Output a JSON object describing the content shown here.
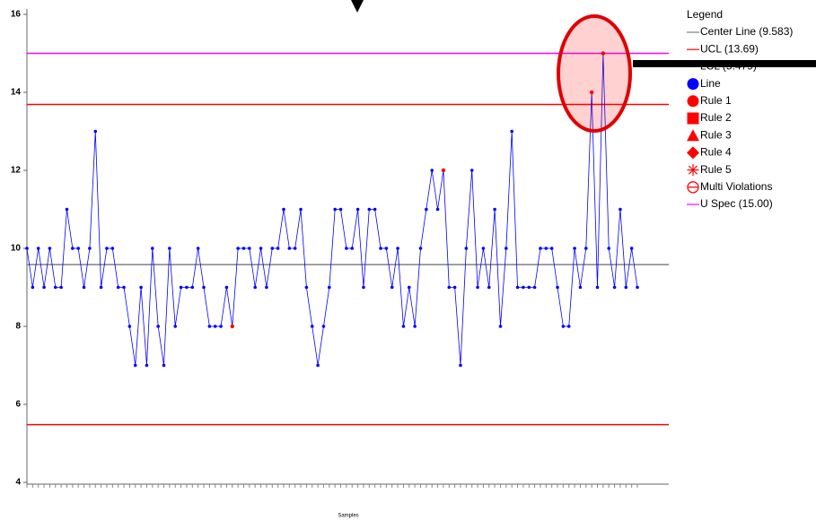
{
  "chart_data": {
    "type": "control",
    "x_label": "Samples",
    "categories": [
      null,
      null,
      null,
      null,
      null,
      null,
      null,
      null,
      null,
      null,
      null,
      null,
      null,
      null,
      null,
      null,
      null,
      null,
      null,
      null,
      null,
      null,
      null,
      null,
      null,
      null,
      null,
      null,
      null,
      null,
      null,
      null,
      null,
      null,
      null,
      null,
      null,
      null,
      null,
      null,
      null,
      null,
      null,
      null,
      null,
      null,
      null,
      null,
      null,
      null,
      null,
      null,
      null,
      null,
      null,
      null,
      null,
      null,
      null,
      null,
      null,
      null,
      null,
      null,
      null,
      null,
      null,
      null,
      null,
      null,
      null,
      null,
      null,
      null,
      null,
      null,
      null,
      null,
      null,
      null,
      null,
      null,
      null,
      null,
      null,
      null,
      null,
      null,
      null,
      null,
      null,
      null,
      null,
      null,
      null,
      null,
      null,
      null,
      null,
      null,
      null,
      null,
      null,
      null,
      null,
      null,
      null,
      null
    ],
    "series": [
      {
        "name": "Line",
        "color": "#0000ff",
        "values": [
          10,
          9,
          10,
          9,
          10,
          9,
          9,
          11,
          10,
          10,
          9,
          10,
          13,
          9,
          10,
          10,
          9,
          9,
          8,
          7,
          9,
          7,
          10,
          8,
          7,
          10,
          8,
          9,
          9,
          9,
          10,
          9,
          8,
          8,
          8,
          9,
          8,
          10,
          10,
          10,
          9,
          10,
          9,
          10,
          10,
          11,
          10,
          10,
          11,
          9,
          8,
          7,
          8,
          9,
          11,
          11,
          10,
          10,
          11,
          9,
          11,
          11,
          10,
          10,
          9,
          10,
          8,
          9,
          8,
          10,
          11,
          12,
          11,
          12,
          9,
          9,
          7,
          10,
          12,
          9,
          10,
          9,
          11,
          8,
          10,
          13,
          9,
          9,
          9,
          9,
          10,
          10,
          10,
          9,
          8,
          8,
          10,
          9,
          10,
          14,
          9,
          15,
          10,
          9,
          11,
          9,
          10,
          9
        ]
      },
      {
        "name": "Rule 1",
        "color": "#ff0000",
        "values": [
          null,
          null,
          null,
          null,
          null,
          null,
          null,
          null,
          null,
          null,
          null,
          null,
          null,
          null,
          null,
          null,
          null,
          null,
          null,
          null,
          null,
          null,
          null,
          null,
          null,
          null,
          null,
          null,
          null,
          null,
          null,
          null,
          null,
          null,
          null,
          null,
          8,
          null,
          null,
          null,
          null,
          null,
          null,
          null,
          null,
          null,
          null,
          null,
          null,
          null,
          null,
          null,
          null,
          null,
          null,
          null,
          null,
          null,
          null,
          null,
          null,
          null,
          null,
          null,
          null,
          null,
          null,
          null,
          null,
          null,
          null,
          null,
          null,
          12,
          null,
          null,
          null,
          null,
          null,
          null,
          null,
          null,
          null,
          null,
          null,
          null,
          null,
          null,
          null,
          null,
          null,
          null,
          null,
          null,
          null,
          null,
          null,
          null,
          null,
          14,
          null,
          15,
          null,
          null,
          null,
          null,
          null,
          null
        ]
      }
    ],
    "control_lines": [
      {
        "name": "Center Line",
        "value": 9.583,
        "color": "#808080"
      },
      {
        "name": "UCL",
        "value": 13.69,
        "color": "#ff0000"
      },
      {
        "name": "LCL",
        "value": 5.479,
        "color": "#ff0000"
      },
      {
        "name": "U Spec",
        "value": 15,
        "color": "#ff00ff"
      }
    ],
    "ylim": [
      4,
      16
    ],
    "yticks": [
      4,
      6,
      8,
      10,
      12,
      14,
      16
    ],
    "legend": {
      "title": "Legend",
      "entries": [
        {
          "label": "Center Line (9.583)",
          "symbol": "line",
          "color": "#808080"
        },
        {
          "label": "UCL (13.69)",
          "symbol": "line",
          "color": "#ff0000"
        },
        {
          "label": "LCL (5.479)",
          "symbol": "line",
          "color": "#ff0000"
        },
        {
          "label": "Line",
          "symbol": "circle",
          "color": "#0000ff"
        },
        {
          "label": "Rule 1",
          "symbol": "circle",
          "color": "#ff0000"
        },
        {
          "label": "Rule 2",
          "symbol": "square",
          "color": "#ff0000"
        },
        {
          "label": "Rule 3",
          "symbol": "triangle",
          "color": "#ff0000"
        },
        {
          "label": "Rule 4",
          "symbol": "diamond",
          "color": "#ff0000"
        },
        {
          "label": "Rule 5",
          "symbol": "star",
          "color": "#ff0000"
        },
        {
          "label": "Multi Violations",
          "symbol": "ring",
          "color": "#ff0000"
        },
        {
          "label": "U Spec (15.00)",
          "symbol": "line",
          "color": "#ff00ff"
        }
      ]
    }
  }
}
